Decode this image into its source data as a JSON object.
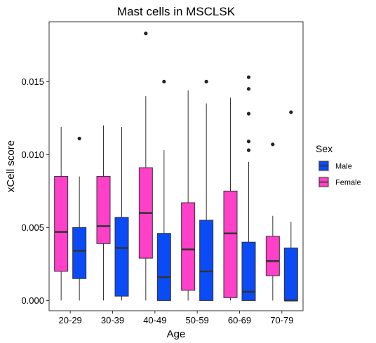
{
  "chart_data": {
    "type": "boxplot",
    "title": "Mast cells in MSCLSK",
    "xlabel": "Age",
    "ylabel": "xCell score",
    "ylim": [
      -0.0007,
      0.0191
    ],
    "yticks": [
      0.0,
      0.005,
      0.01,
      0.015
    ],
    "ytick_labels": [
      "0.000",
      "0.005",
      "0.010",
      "0.015"
    ],
    "categories": [
      "20-29",
      "30-39",
      "40-49",
      "50-59",
      "60-69",
      "70-79"
    ],
    "legend": {
      "title": "Sex",
      "position": "right",
      "entries": [
        {
          "label": "Male",
          "color": "#0B4BF5"
        },
        {
          "label": "Female",
          "color": "#FF40C8"
        }
      ]
    },
    "series": [
      {
        "name": "Female",
        "color": "#FF40C8",
        "boxes": [
          {
            "min": 0.0,
            "q1": 0.002,
            "median": 0.0047,
            "q3": 0.0085,
            "max": 0.0119,
            "outliers": []
          },
          {
            "min": 0.0,
            "q1": 0.0039,
            "median": 0.0051,
            "q3": 0.0085,
            "max": 0.012,
            "outliers": []
          },
          {
            "min": 0.0,
            "q1": 0.0029,
            "median": 0.006,
            "q3": 0.0091,
            "max": 0.014,
            "outliers": [
              0.0183
            ]
          },
          {
            "min": 0.0,
            "q1": 0.0007,
            "median": 0.0035,
            "q3": 0.0067,
            "max": 0.0144,
            "outliers": []
          },
          {
            "min": 0.0,
            "q1": 0.0002,
            "median": 0.0046,
            "q3": 0.0075,
            "max": 0.0139,
            "outliers": []
          },
          {
            "min": 0.0,
            "q1": 0.0017,
            "median": 0.0027,
            "q3": 0.0044,
            "max": 0.0058,
            "outliers": [
              0.0107
            ]
          }
        ]
      },
      {
        "name": "Male",
        "color": "#0B4BF5",
        "boxes": [
          {
            "min": 0.0,
            "q1": 0.0015,
            "median": 0.0034,
            "q3": 0.005,
            "max": 0.0085,
            "outliers": [
              0.0111
            ]
          },
          {
            "min": 0.0,
            "q1": 0.0003,
            "median": 0.0036,
            "q3": 0.0057,
            "max": 0.0119,
            "outliers": []
          },
          {
            "min": 0.0,
            "q1": 0.0,
            "median": 0.0016,
            "q3": 0.0046,
            "max": 0.0103,
            "outliers": [
              0.015
            ]
          },
          {
            "min": 0.0,
            "q1": 0.0,
            "median": 0.002,
            "q3": 0.0055,
            "max": 0.0135,
            "outliers": [
              0.015
            ]
          },
          {
            "min": 0.0,
            "q1": 0.0,
            "median": 0.0006,
            "q3": 0.004,
            "max": 0.0095,
            "outliers": [
              0.0103,
              0.0109,
              0.0128,
              0.0145,
              0.0153
            ]
          },
          {
            "min": 0.0,
            "q1": 0.0,
            "median": 0.0,
            "q3": 0.0036,
            "max": 0.0054,
            "outliers": [
              0.0129
            ]
          }
        ]
      }
    ]
  }
}
